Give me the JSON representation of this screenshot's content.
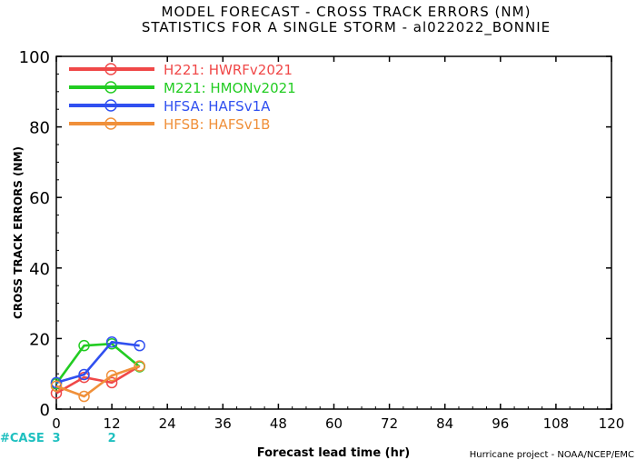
{
  "chart_data": {
    "type": "line",
    "title_line1": "MODEL FORECAST - CROSS TRACK ERRORS (NM)",
    "title_line2": "STATISTICS FOR A SINGLE STORM - al022022_BONNIE",
    "xlabel": "Forecast lead time (hr)",
    "ylabel": "CROSS TRACK ERRORS (NM)",
    "credit": "Hurricane project - NOAA/NCEP/EMC",
    "xlim": [
      0,
      120
    ],
    "ylim": [
      0,
      100
    ],
    "x_ticks": [
      "0",
      "12",
      "24",
      "36",
      "48",
      "60",
      "72",
      "84",
      "96",
      "108",
      "120"
    ],
    "y_ticks": [
      "0",
      "20",
      "40",
      "60",
      "80",
      "100"
    ],
    "case_label": "#CASE",
    "case_counts": [
      {
        "x": 0,
        "label": "3"
      },
      {
        "x": 12,
        "label": "2"
      }
    ],
    "legend_position": "top-left",
    "series": [
      {
        "name": "H221: HWRFv2021",
        "color": "#f04848",
        "x": [
          0,
          6,
          12,
          18
        ],
        "y": [
          4.5,
          9,
          7.5,
          12.2
        ]
      },
      {
        "name": "M221: HMONv2021",
        "color": "#22cc22",
        "x": [
          0,
          6,
          12,
          18
        ],
        "y": [
          7.2,
          18,
          18.5,
          12
        ]
      },
      {
        "name": "HFSA: HAFSv1A",
        "color": "#3050f0",
        "x": [
          0,
          6,
          12,
          18
        ],
        "y": [
          7.5,
          9.8,
          19,
          18
        ]
      },
      {
        "name": "HFSB: HAFSv1B",
        "color": "#f0903a",
        "x": [
          0,
          6,
          12,
          18
        ],
        "y": [
          6.5,
          3.6,
          9.5,
          12.2
        ]
      }
    ],
    "colors": {
      "case_text": "#20c0c0",
      "axis": "#000000"
    }
  }
}
